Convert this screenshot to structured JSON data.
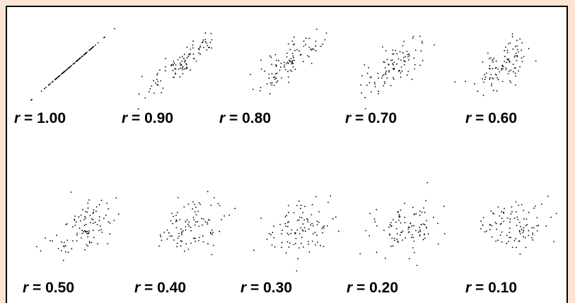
{
  "colors": {
    "background": "#fde3d2",
    "panel": "#ffffff",
    "border": "#000000",
    "points": "#000000"
  },
  "chart_data": {
    "type": "scatter",
    "title": "",
    "xlabel": "",
    "ylabel": "",
    "grid": false,
    "n_points_per_panel": 100,
    "panels": [
      {
        "var": "r",
        "text": "= 1.00",
        "r": 1.0
      },
      {
        "var": "r",
        "text": "= 0.90",
        "r": 0.9
      },
      {
        "var": "r",
        "text": "= 0.80",
        "r": 0.8
      },
      {
        "var": "r",
        "text": "= 0.70",
        "r": 0.7
      },
      {
        "var": "r",
        "text": "= 0.60",
        "r": 0.6
      },
      {
        "var": "r",
        "text": "= 0.50",
        "r": 0.5
      },
      {
        "var": "r",
        "text": "= 0.40",
        "r": 0.4
      },
      {
        "var": "r",
        "text": "= 0.30",
        "r": 0.3
      },
      {
        "var": "r",
        "text": "= 0.20",
        "r": 0.2
      },
      {
        "var": "r",
        "text": "= 0.10",
        "r": 0.1
      }
    ]
  }
}
